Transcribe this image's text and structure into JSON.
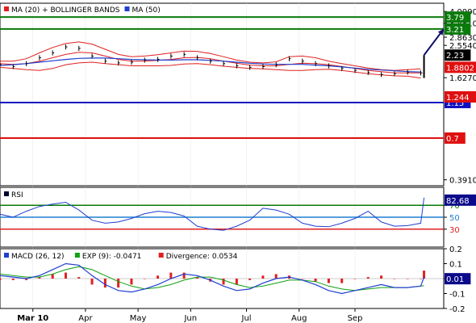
{
  "chart_data": [
    {
      "type": "line",
      "panel": "price",
      "legend": [
        {
          "label": "MA (20) + BOLLINGER BANDS",
          "color": "#e02020"
        },
        {
          "label": "MA (50)",
          "color": "#1f3fd0"
        }
      ],
      "y_ticks": [
        "4.0990",
        "3.4810",
        "2.8630",
        "2.5540",
        "1.6270",
        "0.3910"
      ],
      "y_scale": "log",
      "levels": [
        {
          "label": "3.79",
          "value": 3.79,
          "color": "#0a7a0a"
        },
        {
          "label": "3.21",
          "value": 3.21,
          "color": "#0a7a0a"
        },
        {
          "label": "1.15",
          "value": 1.15,
          "color": "#1010c0"
        },
        {
          "label": "0.7",
          "value": 0.7,
          "color": "#e01010"
        }
      ],
      "value_tags": [
        {
          "label": "2.23",
          "value": 2.23,
          "color": "#000000"
        },
        {
          "label": "1.8802",
          "value": 1.8802,
          "color": "#e01010"
        },
        {
          "label": "1.244",
          "value": 1.244,
          "color": "#e01010"
        }
      ],
      "x": [
        0,
        4,
        8,
        12,
        16,
        20,
        24,
        28,
        32,
        36,
        40,
        44,
        48,
        52,
        56,
        60,
        64,
        68,
        72,
        76,
        80,
        84,
        88,
        92,
        96,
        100,
        104,
        108,
        112,
        116,
        120,
        124,
        128
      ],
      "close": [
        1.95,
        1.9,
        1.98,
        2.15,
        2.3,
        2.5,
        2.45,
        2.2,
        2.05,
        2.0,
        2.02,
        2.08,
        2.1,
        2.2,
        2.25,
        2.15,
        2.05,
        1.98,
        1.92,
        1.88,
        1.9,
        1.95,
        2.12,
        2.05,
        1.98,
        1.92,
        1.85,
        1.8,
        1.75,
        1.7,
        1.72,
        1.76,
        1.74
      ],
      "ma20": [
        1.98,
        1.96,
        1.98,
        2.05,
        2.15,
        2.25,
        2.32,
        2.3,
        2.2,
        2.1,
        2.05,
        2.05,
        2.07,
        2.1,
        2.15,
        2.16,
        2.12,
        2.05,
        1.99,
        1.94,
        1.92,
        1.92,
        1.96,
        1.99,
        1.98,
        1.95,
        1.9,
        1.85,
        1.8,
        1.77,
        1.74,
        1.74,
        1.74
      ],
      "upper": [
        2.05,
        2.05,
        2.12,
        2.3,
        2.48,
        2.62,
        2.68,
        2.6,
        2.42,
        2.25,
        2.18,
        2.2,
        2.24,
        2.3,
        2.36,
        2.35,
        2.28,
        2.18,
        2.08,
        2.02,
        2.0,
        2.03,
        2.18,
        2.2,
        2.15,
        2.05,
        1.98,
        1.92,
        1.86,
        1.82,
        1.8,
        1.82,
        1.84
      ],
      "lower": [
        1.88,
        1.85,
        1.82,
        1.8,
        1.85,
        1.95,
        2.0,
        2.02,
        1.98,
        1.95,
        1.92,
        1.92,
        1.92,
        1.93,
        1.97,
        1.98,
        1.95,
        1.91,
        1.88,
        1.85,
        1.84,
        1.82,
        1.8,
        1.8,
        1.82,
        1.83,
        1.8,
        1.76,
        1.72,
        1.69,
        1.67,
        1.66,
        1.62
      ],
      "ma50": [
        1.93,
        1.95,
        1.98,
        2.02,
        2.06,
        2.1,
        2.13,
        2.14,
        2.14,
        2.12,
        2.1,
        2.09,
        2.08,
        2.08,
        2.09,
        2.09,
        2.07,
        2.05,
        2.02,
        1.99,
        1.97,
        1.96,
        1.96,
        1.96,
        1.94,
        1.92,
        1.89,
        1.86,
        1.83,
        1.81,
        1.79,
        1.77,
        1.76
      ],
      "last_bar": {
        "x": 129,
        "open": 1.74,
        "high": 2.23,
        "low": 1.62,
        "close": 2.23
      },
      "projection": {
        "from": {
          "x": 129,
          "value": 2.23
        },
        "to": {
          "x": 135,
          "value": 3.21
        }
      }
    },
    {
      "type": "line",
      "panel": "rsi",
      "legend": [
        {
          "label": "RSI",
          "color": "#000033"
        }
      ],
      "y_ticks": [
        "70",
        "50",
        "30"
      ],
      "ylim": [
        0,
        100
      ],
      "levels": [
        {
          "label": "70",
          "value": 70,
          "color": "#0a7a0a"
        },
        {
          "label": "50",
          "value": 50,
          "color": "#1f7fd0"
        },
        {
          "label": "30",
          "value": 30,
          "color": "#e02020"
        }
      ],
      "value_tag": {
        "label": "82.68",
        "value": 82.68
      },
      "x": [
        0,
        4,
        8,
        12,
        16,
        20,
        24,
        28,
        32,
        36,
        40,
        44,
        48,
        52,
        56,
        60,
        64,
        68,
        72,
        76,
        80,
        84,
        88,
        92,
        96,
        100,
        104,
        108,
        112,
        116,
        120,
        124,
        128,
        129
      ],
      "values": [
        55,
        50,
        60,
        68,
        72,
        75,
        62,
        45,
        40,
        42,
        48,
        56,
        60,
        58,
        52,
        35,
        30,
        28,
        35,
        45,
        65,
        62,
        55,
        40,
        35,
        34,
        40,
        48,
        60,
        42,
        35,
        36,
        40,
        82.68
      ]
    },
    {
      "type": "bar",
      "panel": "macd",
      "legend": [
        {
          "label": "MACD (26, 12)",
          "color": "#1f3fd0"
        },
        {
          "label": "EXP (9): -0.0471",
          "color": "#10a010"
        },
        {
          "label": "Divergence: 0.0534",
          "color": "#e02020"
        }
      ],
      "y_ticks": [
        "0.2",
        "0.1",
        "0.0",
        "-0.1",
        "-0.2"
      ],
      "ylim": [
        -0.2,
        0.2
      ],
      "value_tag": {
        "label": "0.01",
        "value": 0.01
      },
      "x": [
        0,
        4,
        8,
        12,
        16,
        20,
        24,
        28,
        32,
        36,
        40,
        44,
        48,
        52,
        56,
        60,
        64,
        68,
        72,
        76,
        80,
        84,
        88,
        92,
        96,
        100,
        104,
        108,
        112,
        116,
        120,
        124,
        128,
        129
      ],
      "macd": [
        0.02,
        0.01,
        0.0,
        0.02,
        0.06,
        0.1,
        0.09,
        0.02,
        -0.04,
        -0.08,
        -0.09,
        -0.07,
        -0.04,
        0.0,
        0.03,
        0.02,
        -0.01,
        -0.05,
        -0.08,
        -0.07,
        -0.03,
        0.0,
        0.01,
        -0.01,
        -0.04,
        -0.08,
        -0.1,
        -0.08,
        -0.06,
        -0.04,
        -0.06,
        -0.06,
        -0.05,
        0.01
      ],
      "signal": [
        0.03,
        0.02,
        0.01,
        0.01,
        0.03,
        0.06,
        0.08,
        0.06,
        0.02,
        -0.02,
        -0.05,
        -0.07,
        -0.06,
        -0.04,
        -0.01,
        0.01,
        0.01,
        -0.01,
        -0.04,
        -0.06,
        -0.05,
        -0.03,
        -0.01,
        -0.01,
        -0.02,
        -0.05,
        -0.07,
        -0.08,
        -0.07,
        -0.06,
        -0.06,
        -0.06,
        -0.05,
        -0.0471
      ],
      "divergence": [
        -0.01,
        -0.01,
        -0.01,
        0.01,
        0.03,
        0.04,
        0.01,
        -0.04,
        -0.06,
        -0.06,
        -0.04,
        0.0,
        0.02,
        0.04,
        0.04,
        0.01,
        -0.02,
        -0.04,
        -0.04,
        -0.01,
        0.02,
        0.03,
        0.02,
        0.0,
        -0.02,
        -0.03,
        -0.03,
        0.0,
        0.01,
        0.02,
        0.0,
        0.0,
        0.0,
        0.0534
      ]
    }
  ],
  "x_axis": {
    "labels": [
      {
        "label": "Mar 10",
        "x": 10,
        "bold": true
      },
      {
        "label": "Apr",
        "x": 26
      },
      {
        "label": "May",
        "x": 42
      },
      {
        "label": "Jun",
        "x": 58
      },
      {
        "label": "Jul",
        "x": 75
      },
      {
        "label": "Aug",
        "x": 91
      },
      {
        "label": "Sep",
        "x": 108
      }
    ],
    "range": [
      0,
      135
    ]
  }
}
